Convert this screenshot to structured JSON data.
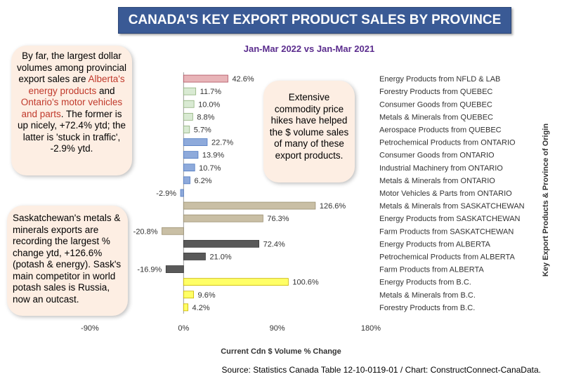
{
  "chart_data": {
    "type": "bar",
    "orientation": "horizontal",
    "title": "CANADA'S KEY EXPORT PRODUCT SALES BY PROVINCE",
    "subtitle": "Jan-Mar 2022 vs Jan-Mar 2021",
    "xlabel": "Current Cdn $ Volume % Change",
    "ylabel": "Key Export Products & Province of Origin",
    "xlim": [
      -90,
      180
    ],
    "xticks": [
      "-90%",
      "0%",
      "90%",
      "180%"
    ],
    "xtick_values": [
      -90,
      0,
      90,
      180
    ],
    "grid": false,
    "categories": [
      "Energy Products from NFLD & LAB",
      "Forestry Products from QUEBEC",
      "Consumer Goods from QUEBEC",
      "Metals & Minerals from QUEBEC",
      "Aerospace Products from QUEBEC",
      "Petrochemical Products from ONTARIO",
      "Consumer Goods from ONTARIO",
      "Industrial Machinery from ONTARIO",
      "Metals & Minerals from ONTARIO",
      "Motor Vehicles & Parts from ONTARIO",
      "Metals & Minerals from SASKATCHEWAN",
      "Energy Products from SASKATCHEWAN",
      "Farm Products from SASKATCHEWAN",
      "Energy Products from ALBERTA",
      "Petrochemical Products from ALBERTA",
      "Farm Products from ALBERTA",
      "Energy Products from B.C.",
      "Metals & Minerals from B.C.",
      "Forestry Products from B.C."
    ],
    "values": [
      42.6,
      11.7,
      10.0,
      8.8,
      5.7,
      22.7,
      13.9,
      10.7,
      6.2,
      -2.9,
      126.6,
      76.3,
      -20.8,
      72.4,
      21.0,
      -16.9,
      100.6,
      9.6,
      4.2
    ],
    "value_labels": [
      "42.6%",
      "11.7%",
      "10.0%",
      "8.8%",
      "5.7%",
      "22.7%",
      "13.9%",
      "10.7%",
      "6.2%",
      "-2.9%",
      "126.6%",
      "76.3%",
      "-20.8%",
      "72.4%",
      "21.0%",
      "-16.9%",
      "100.6%",
      "9.6%",
      "4.2%"
    ],
    "colors": [
      "#e8b4b8",
      "#d9ead3",
      "#d9ead3",
      "#d9ead3",
      "#d9ead3",
      "#8eaadb",
      "#8eaadb",
      "#8eaadb",
      "#8eaadb",
      "#8eaadb",
      "#c9bfa5",
      "#c9bfa5",
      "#c9bfa5",
      "#595959",
      "#595959",
      "#595959",
      "#ffff66",
      "#ffff66",
      "#ffff66"
    ],
    "stroke_colors": [
      "#b05060",
      "#8fb07c",
      "#8fb07c",
      "#8fb07c",
      "#8fb07c",
      "#4f79c0",
      "#4f79c0",
      "#4f79c0",
      "#4f79c0",
      "#4f79c0",
      "#9a8f70",
      "#9a8f70",
      "#9a8f70",
      "#3a3a3a",
      "#3a3a3a",
      "#3a3a3a",
      "#c9b300",
      "#c9b300",
      "#c9b300"
    ]
  },
  "callouts": {
    "alberta": {
      "part1": "By far, the largest dollar volumes among provincial export sales are ",
      "highlight1": "Alberta's energy products",
      "part2": " and ",
      "highlight2": "Ontario's motor vehicles and parts",
      "part3": ". The former is up nicely, +72.4% ytd; the latter is 'stuck in traffic', -2.9% ytd."
    },
    "commodity": "Extensive commodity price hikes have helped the $ volume sales of many of these export products.",
    "saskatchewan": "Saskatchewan's metals & minerals exports are recording the largest % change ytd, +126.6% (potash & energy). Sask's main competitor in world potash sales is Russia, now an outcast."
  },
  "source": "Source: Statistics Canada Table 12-10-0119-01 / Chart: ConstructConnect-CanaData."
}
